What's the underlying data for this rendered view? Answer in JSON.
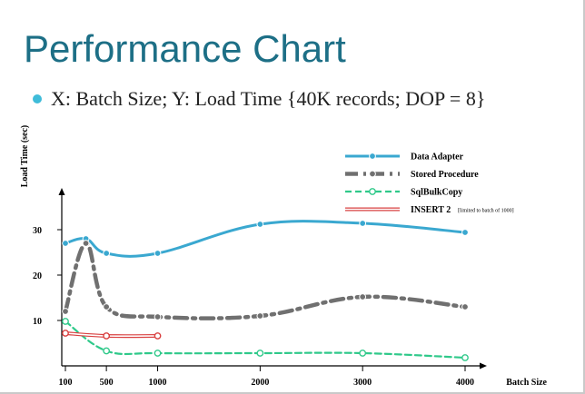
{
  "slide": {
    "title": "Performance Chart",
    "bullet": "X: Batch Size; Y: Load Time {40K records; DOP = 8}"
  },
  "chart_data": {
    "type": "line",
    "xlabel": "Batch Size",
    "ylabel": "Load Time (sec)",
    "x_ticks": [
      100,
      500,
      1000,
      2000,
      3000,
      4000
    ],
    "y_ticks": [
      10,
      20,
      30
    ],
    "xlim": [
      0,
      4000
    ],
    "ylim": [
      0,
      40
    ],
    "legend_position": "top-right",
    "series": [
      {
        "name": "Data Adapter",
        "color": "#3aa8d0",
        "style": "solid",
        "marker": "dot",
        "points": [
          [
            100,
            27
          ],
          [
            300,
            28
          ],
          [
            500,
            24.8
          ],
          [
            1000,
            24.8
          ],
          [
            2000,
            31.2
          ],
          [
            3000,
            31.4
          ],
          [
            4000,
            29.4
          ]
        ]
      },
      {
        "name": "Stored Procedure",
        "color": "#707070",
        "style": "dashdot",
        "marker": "dot",
        "points": [
          [
            100,
            12
          ],
          [
            300,
            27
          ],
          [
            500,
            13
          ],
          [
            1000,
            10.8
          ],
          [
            2000,
            11
          ],
          [
            3000,
            15.2
          ],
          [
            4000,
            13
          ]
        ]
      },
      {
        "name": "SqlBulkCopy",
        "color": "#2fc98a",
        "style": "dashed",
        "marker": "open",
        "points": [
          [
            100,
            9.8
          ],
          [
            500,
            3.3
          ],
          [
            1000,
            2.8
          ],
          [
            2000,
            2.8
          ],
          [
            3000,
            2.8
          ],
          [
            4000,
            1.8
          ]
        ]
      },
      {
        "name": "INSERT 2",
        "note": "[limited to batch of 1000]",
        "color": "#d94040",
        "style": "double",
        "marker": "open",
        "points": [
          [
            100,
            7.2
          ],
          [
            500,
            6.6
          ],
          [
            1000,
            6.6
          ]
        ]
      }
    ]
  }
}
